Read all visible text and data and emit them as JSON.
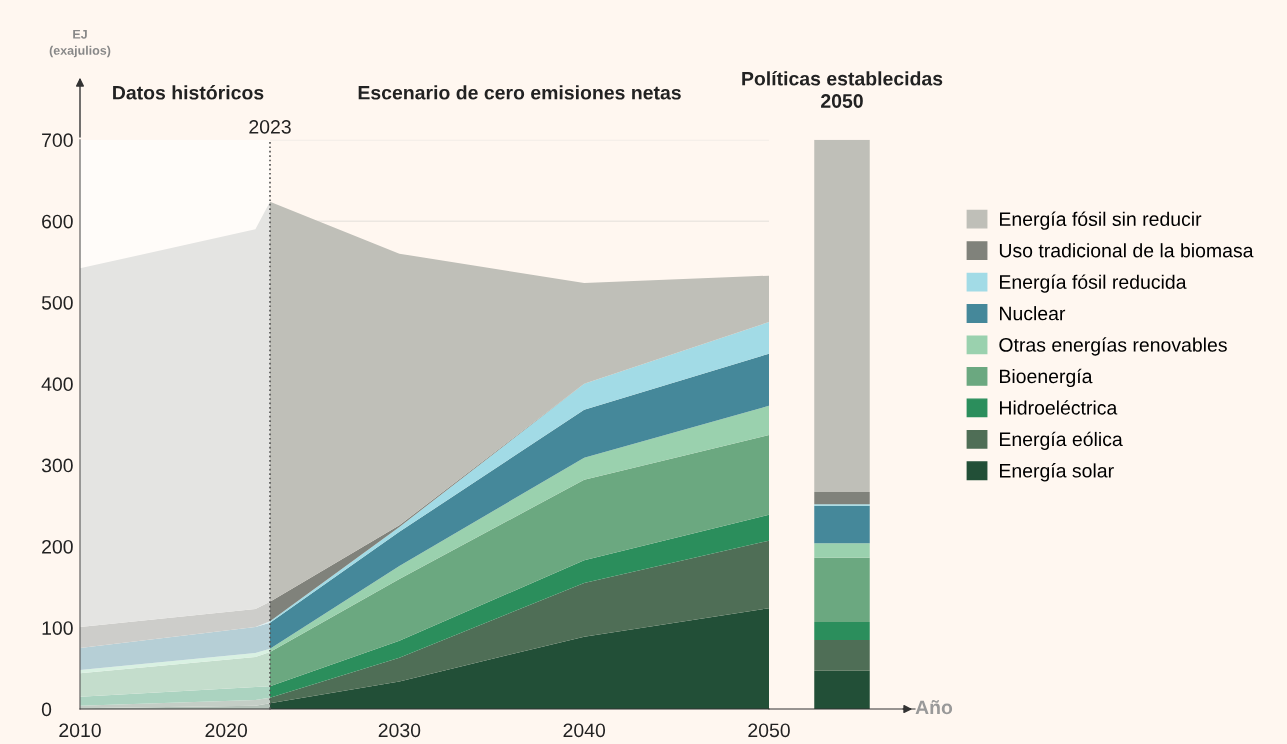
{
  "chart_data": [
    {
      "type": "area",
      "stacked": true,
      "ylabel": "EJ\n(exajulios)",
      "x": [
        2010,
        2022,
        2023
      ],
      "series": [
        {
          "color": "#b5c2b9",
          "values": [
            1,
            4,
            7
          ]
        },
        {
          "color": "#c4cec6",
          "values": [
            3,
            7,
            7
          ]
        },
        {
          "color": "#abd3c0",
          "values": [
            11,
            16,
            14
          ]
        },
        {
          "color": "#c4ddcc",
          "values": [
            29,
            37,
            42
          ]
        },
        {
          "color": "#d9f1e2",
          "values": [
            4,
            5,
            4
          ]
        },
        {
          "color": "#b6cfd6",
          "values": [
            27,
            32,
            32
          ]
        },
        {
          "color": "#d9f0f4",
          "values": [
            0,
            0,
            2
          ]
        },
        {
          "color": "#cdcdca",
          "values": [
            26,
            22,
            24
          ]
        },
        {
          "color": "#e4e4e2",
          "values": [
            441,
            467,
            492
          ]
        }
      ],
      "xlim": [
        2010,
        2023
      ],
      "xticks": [
        2010,
        2020
      ],
      "ylim": [
        0,
        700
      ],
      "yticks": [
        0,
        100,
        200,
        300,
        400,
        500,
        600,
        700
      ],
      "bands": [
        {
          "axis": "x",
          "from": 2010,
          "to": 2023,
          "label": "Datos históricos",
          "color": "#fffcf9"
        }
      ]
    },
    {
      "type": "area",
      "stacked": true,
      "title": "Escenario de cero emisiones netas",
      "x": [
        2023,
        2030,
        2040,
        2050
      ],
      "series": [
        {
          "name": "Energía solar",
          "color": "#224f37",
          "values": [
            7,
            34,
            89,
            124
          ]
        },
        {
          "name": "Energía eólica",
          "color": "#4f6e56",
          "values": [
            7,
            29,
            66,
            83
          ]
        },
        {
          "name": "Hidroeléctrica",
          "color": "#2b8e5c",
          "values": [
            14,
            21,
            28,
            32
          ]
        },
        {
          "name": "Bioenergía",
          "color": "#6ba880",
          "values": [
            42,
            76,
            99,
            98
          ]
        },
        {
          "name": "Otras energías renovables",
          "color": "#9ad1ae",
          "values": [
            4,
            16,
            27,
            36
          ]
        },
        {
          "name": "Nuclear",
          "color": "#45889a",
          "values": [
            32,
            42,
            59,
            64
          ]
        },
        {
          "name": "Energía fósil reducida",
          "color": "#a2dbe6",
          "values": [
            2,
            6,
            32,
            39
          ]
        },
        {
          "name": "Uso tradicional de la biomasa",
          "color": "#80827b",
          "values": [
            24,
            2,
            0,
            0
          ]
        },
        {
          "name": "Energía fósil sin reducir",
          "color": "#bfbfb8",
          "values": [
            492,
            334,
            124,
            57
          ]
        }
      ],
      "xlim": [
        2023,
        2050
      ],
      "xticks": [
        2030,
        2040,
        2050
      ],
      "ylim": [
        0,
        700
      ],
      "yticks": [
        0,
        100,
        200,
        300,
        400,
        500,
        600,
        700
      ],
      "grid": "y",
      "tick_labels": "x",
      "legend": "right",
      "ref_lines": [
        {
          "axis": "x",
          "value": 2023,
          "label": "2023",
          "line_style": "dotted",
          "color": "#555555"
        }
      ]
    },
    {
      "type": "bar",
      "stacked": true,
      "title": "Políticas establecidas\n2050",
      "xlabel": "Año",
      "categories": [
        null
      ],
      "series": [
        {
          "color": "#224f37",
          "values": [
            47
          ]
        },
        {
          "color": "#4f6e56",
          "values": [
            38
          ]
        },
        {
          "color": "#2b8e5c",
          "values": [
            22
          ]
        },
        {
          "color": "#6ba880",
          "values": [
            79
          ]
        },
        {
          "color": "#9ad1ae",
          "values": [
            18
          ]
        },
        {
          "color": "#45889a",
          "values": [
            46
          ]
        },
        {
          "color": "#a2dbe6",
          "values": [
            2
          ]
        },
        {
          "color": "#80827b",
          "values": [
            15
          ]
        },
        {
          "color": "#bfbfb8",
          "values": [
            433
          ]
        }
      ],
      "ylim": [
        0,
        700
      ],
      "yticks": [
        0,
        100,
        200,
        300,
        400,
        500,
        600,
        700
      ],
      "tick_labels": false
    }
  ]
}
